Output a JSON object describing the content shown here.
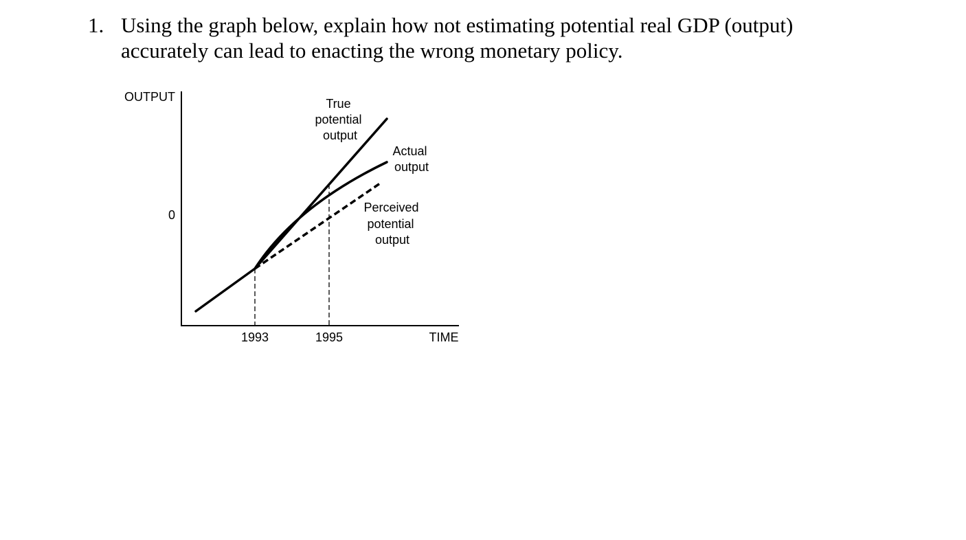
{
  "question": {
    "number": "1.",
    "line1": "Using the graph below, explain how not estimating potential real GDP (output)",
    "line2": "accurately can lead to enacting the wrong monetary policy."
  },
  "chart_data": {
    "type": "line",
    "ylabel": "OUTPUT",
    "xlabel": "TIME",
    "y_tick": "0",
    "x_ticks": [
      "1993",
      "1995"
    ],
    "grid": false,
    "series": [
      {
        "name": "True potential output",
        "label_lines": [
          "True",
          "potential",
          "output"
        ],
        "style": "solid"
      },
      {
        "name": "Actual output",
        "label_lines": [
          "Actual",
          "output"
        ],
        "style": "solid"
      },
      {
        "name": "Perceived potential output",
        "label_lines": [
          "Perceived",
          "potential",
          "output"
        ],
        "style": "dashed"
      }
    ]
  }
}
